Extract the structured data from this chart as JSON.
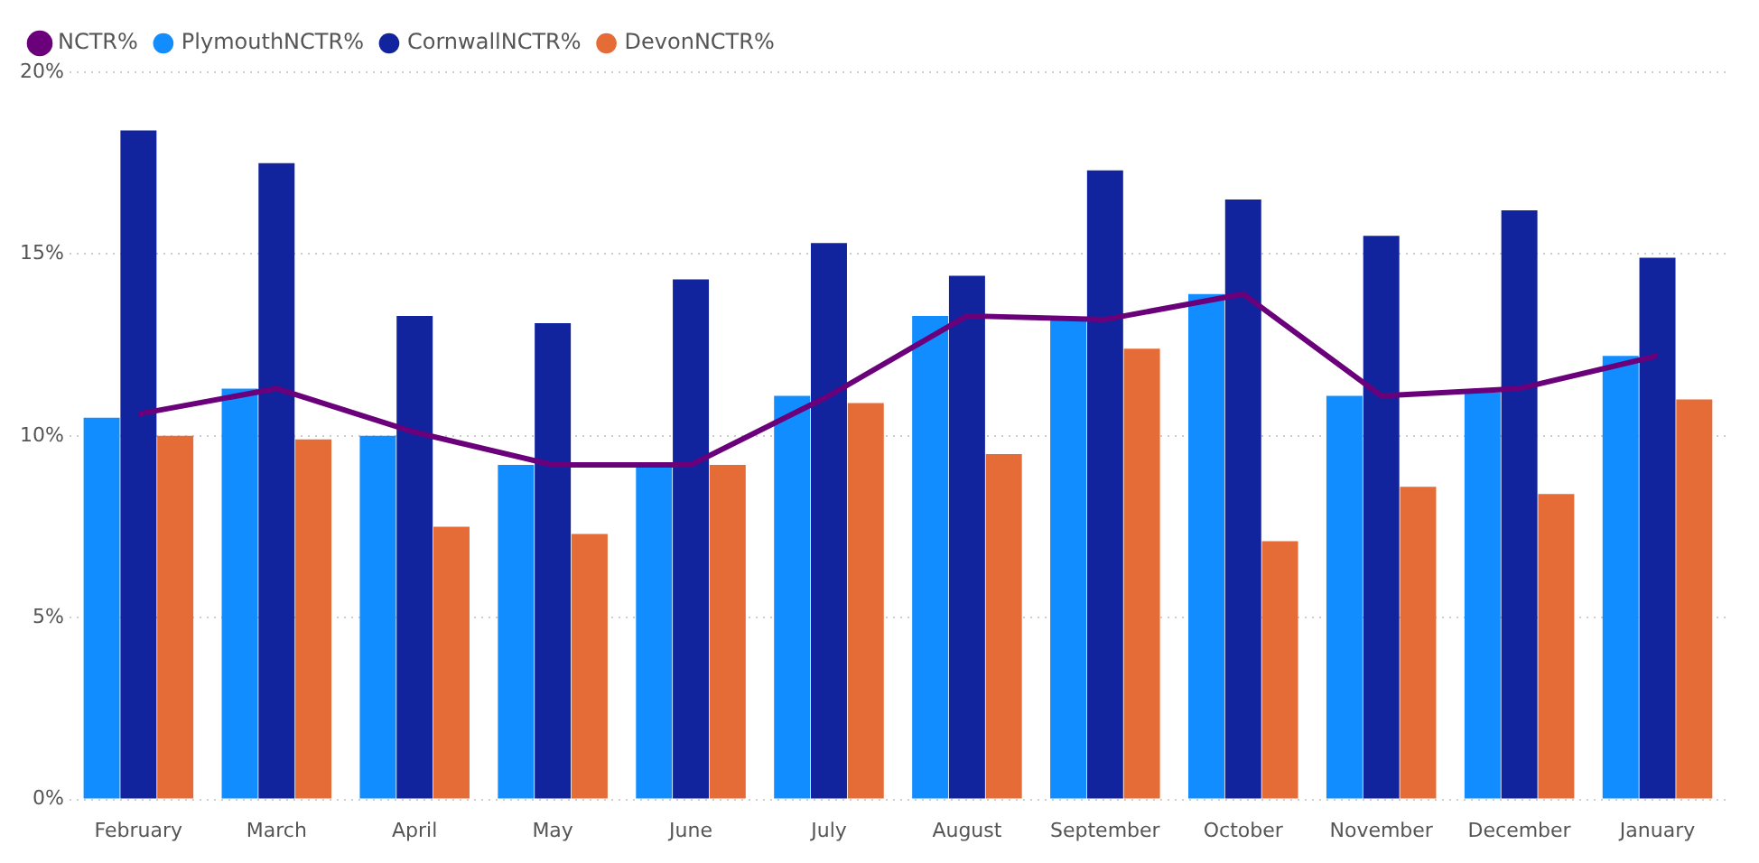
{
  "chart_data": {
    "type": "bar",
    "categories": [
      "February",
      "March",
      "April",
      "May",
      "June",
      "July",
      "August",
      "September",
      "October",
      "November",
      "December",
      "January"
    ],
    "series": [
      {
        "name": "PlymouthNCTR%",
        "color": "#118dff",
        "values": [
          10.5,
          11.3,
          10.0,
          9.2,
          9.2,
          11.1,
          13.3,
          13.2,
          13.9,
          11.1,
          11.2,
          12.2
        ]
      },
      {
        "name": "CornwallNCTR%",
        "color": "#12239e",
        "values": [
          18.4,
          17.5,
          13.3,
          13.1,
          14.3,
          15.3,
          14.4,
          17.3,
          16.5,
          15.5,
          16.2,
          14.9
        ]
      },
      {
        "name": "DevonNCTR%",
        "color": "#e66c37",
        "values": [
          10.0,
          9.9,
          7.5,
          7.3,
          9.2,
          10.9,
          9.5,
          12.4,
          7.1,
          8.6,
          8.4,
          11.0
        ]
      },
      {
        "name": "NCTR%",
        "color": "#6b007b",
        "type": "line",
        "values": [
          10.6,
          11.3,
          10.1,
          9.2,
          9.2,
          11.1,
          13.3,
          13.2,
          13.9,
          11.1,
          11.3,
          12.2
        ]
      }
    ],
    "ylim": [
      0,
      20
    ],
    "yticks": [
      {
        "value": 0,
        "label": "0%"
      },
      {
        "value": 5,
        "label": "5%"
      },
      {
        "value": 10,
        "label": "10%"
      },
      {
        "value": 15,
        "label": "15%"
      },
      {
        "value": 20,
        "label": "20%"
      }
    ],
    "grid": "y",
    "legend": "top left",
    "marker": "none",
    "line_style": "solid"
  }
}
